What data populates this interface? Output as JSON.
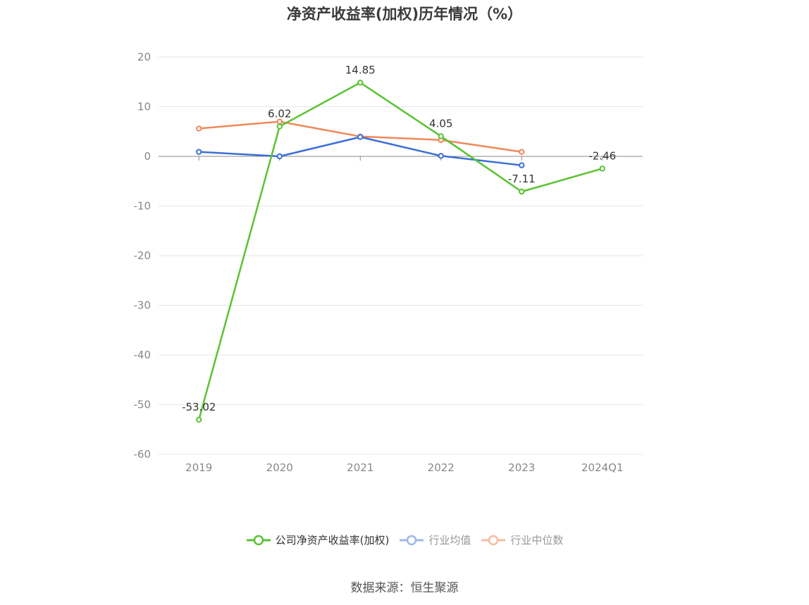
{
  "chart_data": {
    "type": "line",
    "title": "净资产收益率(加权)历年情况（%）",
    "categories": [
      "2019",
      "2020",
      "2021",
      "2022",
      "2023",
      "2024Q1"
    ],
    "ylim": [
      -60,
      20
    ],
    "yticks": [
      20,
      10,
      0,
      -10,
      -20,
      -30,
      -40,
      -50,
      -60
    ],
    "grid": true,
    "legend_position": "bottom",
    "series": [
      {
        "name": "公司净资产收益率(加权)",
        "color": "#5ac232",
        "values": [
          -53.02,
          6.02,
          14.85,
          4.05,
          -7.11,
          -2.46
        ],
        "labels": [
          "-53.02",
          "6.02",
          "14.85",
          "4.05",
          "-7.11",
          "-2.46"
        ]
      },
      {
        "name": "行业均值",
        "color": "#3b6fd4",
        "values": [
          0.9,
          0.0,
          3.9,
          0.1,
          -1.8,
          null
        ]
      },
      {
        "name": "行业中位数",
        "color": "#f0885a",
        "values": [
          5.6,
          7.0,
          4.0,
          3.3,
          0.9,
          null
        ]
      }
    ]
  },
  "legend": {
    "item1": "公司净资产收益率(加权)",
    "item2": "行业均值",
    "item3": "行业中位数"
  },
  "source": "数据来源：恒生聚源"
}
